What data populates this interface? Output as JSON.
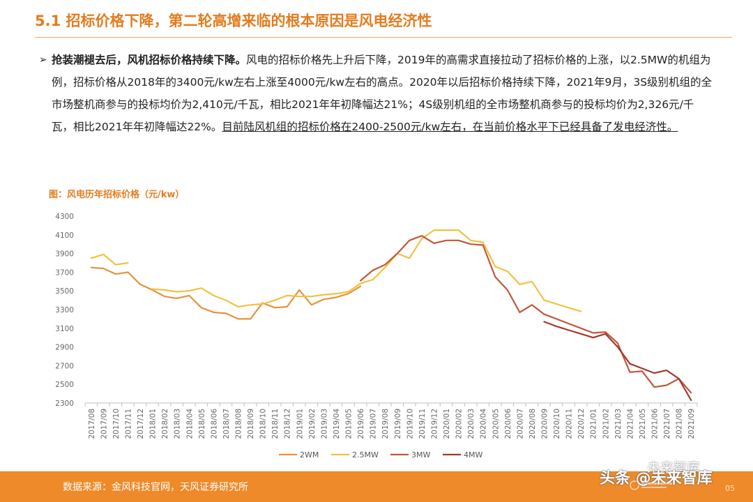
{
  "slide": {
    "title": "5.1 招标价格下降，第二轮高增来临的根本原因是风电经济性",
    "bullet_mark": "➢",
    "bullet_lead": "抢装潮褪去后，风机招标价格持续下降。",
    "bullet_body": "风电的招标价格先上升后下降，2019年的高需求直接拉动了招标价格的上涨，以2.5MW的机组为例，招标价格从2018年的3400元/kw左右上涨至4000元/kw左右的高点。2020年以后招标价格持续下降，2021年9月，3S级别机组的全市场整机商参与的投标均价为2,410元/千瓦，相比2021年年初降幅达21%；4S级别机组的全市场整机商参与的投标均价为2,326元/千瓦，相比2021年年初降幅达22%。",
    "bullet_highlight": "目前陆风机组的招标价格在2400-2500元/kw左右，在当前价格水平下已经具备了发电经济性。",
    "figure_label": "图：风电历年招标价格（元/kw）",
    "source": "数据来源：金风科技官网，天风证券研究所",
    "page_number": "05",
    "watermark_top": "未来智库",
    "watermark_bottom": "头条 @未来智库",
    "colors": {
      "accent": "#e37c1f",
      "footer": "#ef8a2a"
    }
  },
  "chart_data": {
    "type": "line",
    "title": "",
    "xlabel": "",
    "ylabel": "",
    "ylim": [
      2300,
      4300
    ],
    "yticks": [
      2300,
      2500,
      2700,
      2900,
      3100,
      3300,
      3500,
      3700,
      3900,
      4100,
      4300
    ],
    "legend_position": "bottom",
    "grid": false,
    "categories": [
      "2017/08",
      "2017/09",
      "2017/10",
      "2017/11",
      "2017/12",
      "2018/01",
      "2018/02",
      "2018/03",
      "2018/04",
      "2018/05",
      "2018/06",
      "2018/07",
      "2018/08",
      "2018/09",
      "2018/10",
      "2018/11",
      "2018/12",
      "2019/01",
      "2019/02",
      "2019/03",
      "2019/04",
      "2019/05",
      "2019/06",
      "2019/07",
      "2019/08",
      "2019/09",
      "2019/10",
      "2019/11",
      "2019/12",
      "2020/01",
      "2020/02",
      "2020/03",
      "2020/04",
      "2020/05",
      "2020/06",
      "2020/07",
      "2020/08",
      "2020/09",
      "2020/10",
      "2020/11",
      "2020/12",
      "2021/01",
      "2021/02",
      "2021/03",
      "2021/04",
      "2021/05",
      "2021/06",
      "2021/07",
      "2021/08",
      "2021/09"
    ],
    "series": [
      {
        "name": "2WM",
        "color": "#e8923c",
        "values": [
          3750,
          3740,
          3680,
          3700,
          3570,
          3510,
          3440,
          3420,
          3450,
          3320,
          3270,
          3260,
          3200,
          3200,
          3370,
          3320,
          3330,
          3510,
          3350,
          3410,
          3430,
          3470,
          3550,
          null,
          null,
          null,
          null,
          null,
          null,
          null,
          null,
          null,
          null,
          null,
          null,
          null,
          null,
          null,
          null,
          null,
          null,
          null,
          null,
          null,
          null,
          null,
          null,
          null,
          null,
          null
        ]
      },
      {
        "name": "2.5MW",
        "color": "#f0c23f",
        "values": [
          3850,
          3890,
          3780,
          3800,
          null,
          3520,
          3510,
          3490,
          3500,
          3530,
          3450,
          3400,
          3330,
          3350,
          3360,
          3400,
          3450,
          3440,
          3440,
          3460,
          3470,
          3490,
          3580,
          3620,
          3750,
          3900,
          3850,
          4060,
          4150,
          4150,
          4150,
          4040,
          4020,
          3760,
          3710,
          3570,
          3600,
          3400,
          3360,
          3320,
          3280,
          null,
          null,
          null,
          null,
          null,
          null,
          null,
          null,
          null
        ]
      },
      {
        "name": "3MW",
        "color": "#c0573a",
        "values": [
          null,
          null,
          null,
          null,
          null,
          null,
          null,
          null,
          null,
          null,
          null,
          null,
          null,
          null,
          null,
          null,
          null,
          null,
          null,
          null,
          null,
          null,
          3610,
          3720,
          3780,
          3900,
          4040,
          4090,
          4010,
          4040,
          4040,
          4000,
          3990,
          3650,
          3510,
          3270,
          3350,
          3250,
          3200,
          3150,
          3100,
          3050,
          3060,
          2940,
          2630,
          2640,
          2470,
          2490,
          2560,
          2410
        ]
      },
      {
        "name": "4MW",
        "color": "#a4372a",
        "values": [
          null,
          null,
          null,
          null,
          null,
          null,
          null,
          null,
          null,
          null,
          null,
          null,
          null,
          null,
          null,
          null,
          null,
          null,
          null,
          null,
          null,
          null,
          null,
          null,
          null,
          null,
          null,
          null,
          null,
          null,
          null,
          null,
          null,
          null,
          null,
          null,
          null,
          3170,
          3120,
          3080,
          3040,
          3000,
          3040,
          2900,
          2720,
          2670,
          2620,
          2650,
          2560,
          2330
        ]
      }
    ]
  }
}
